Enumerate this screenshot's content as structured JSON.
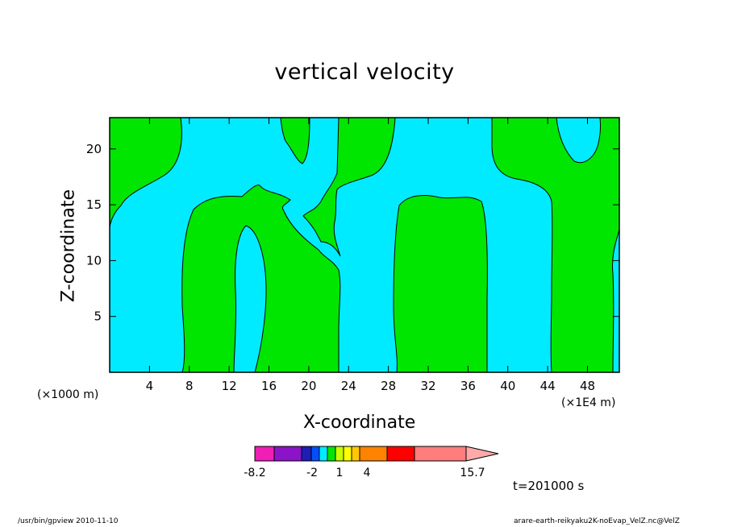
{
  "chart_data": {
    "type": "heatmap",
    "title": "vertical velocity",
    "xlabel": "X-coordinate",
    "ylabel": "Z-coordinate",
    "x_unit": "(×1000 m)",
    "x_multiplier": "(×1E4 m)",
    "xlim": [
      0,
      51.2
    ],
    "ylim": [
      0,
      22.8
    ],
    "x_ticks": [
      "4",
      "8",
      "12",
      "16",
      "20",
      "24",
      "28",
      "32",
      "36",
      "40",
      "44",
      "48"
    ],
    "y_ticks": [
      "5",
      "10",
      "15",
      "20"
    ],
    "fill_colors": {
      "negative": "#00ebff",
      "positive": "#00e600"
    },
    "colorbar": {
      "colors": [
        "#f01eb4",
        "#8c14c8",
        "#1e1eb4",
        "#0050ff",
        "#00ebff",
        "#00e600",
        "#c8ff00",
        "#ffff00",
        "#ffc800",
        "#ff8200",
        "#ff0000",
        "#ff7d7d",
        "#ffaaaa"
      ],
      "tick_labels": [
        "-8.2",
        "-2",
        "1",
        "4",
        "15.7"
      ]
    },
    "time_label": "t=201000 s"
  },
  "footer": {
    "left": "/usr/bin/gpview   2010-11-10",
    "right": "arare-earth-reikyaku2K-noEvap_VelZ.nc@VelZ"
  }
}
